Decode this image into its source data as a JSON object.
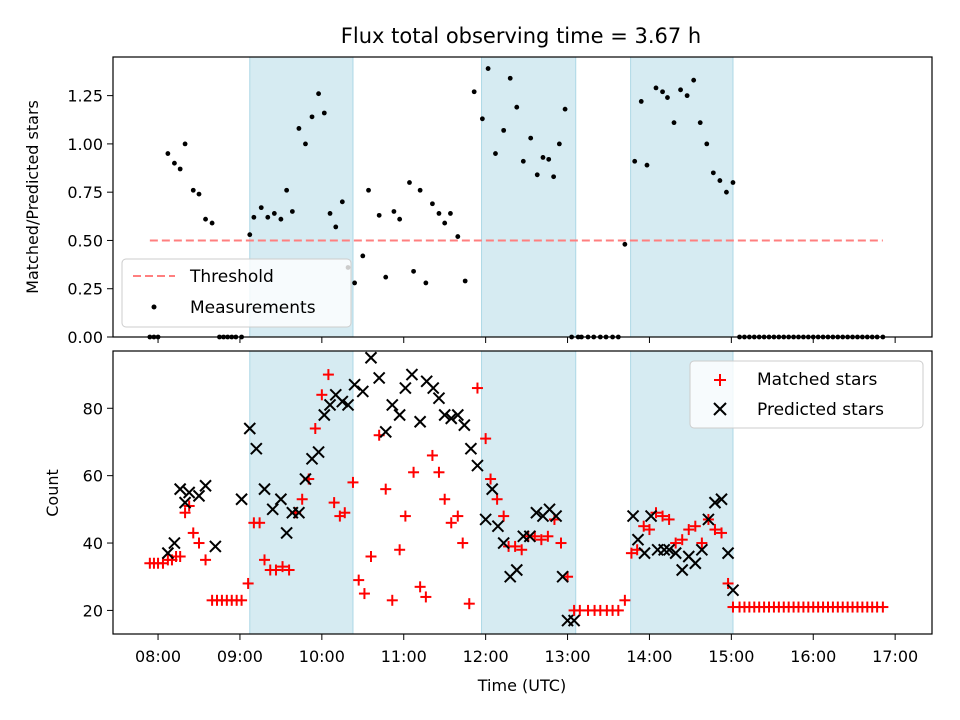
{
  "chart_data": [
    {
      "type": "scatter",
      "title": "Flux total observing time = 3.67 h",
      "xlabel": "",
      "ylabel": "Matched/Predicted stars",
      "xlim": [
        7.45,
        17.45
      ],
      "ylim": [
        0,
        1.45
      ],
      "yticks": [
        0,
        0.25,
        0.5,
        0.75,
        1.0,
        1.25
      ],
      "ytick_labels": [
        "0.00",
        "0.25",
        "0.50",
        "0.75",
        "1.00",
        "1.25"
      ],
      "threshold": {
        "label": "Threshold",
        "value": 0.5,
        "x_start": 7.9,
        "x_end": 16.85,
        "color": "#ff7f7f"
      },
      "series": [
        {
          "name": "Measurements",
          "color": "#000000",
          "x": [
            7.9,
            7.95,
            8.0,
            8.12,
            8.2,
            8.27,
            8.33,
            8.43,
            8.5,
            8.58,
            8.66,
            8.75,
            8.8,
            8.85,
            8.9,
            8.95,
            9.02,
            9.12,
            9.17,
            9.26,
            9.34,
            9.42,
            9.5,
            9.57,
            9.64,
            9.72,
            9.8,
            9.88,
            9.96,
            10.03,
            10.1,
            10.17,
            10.25,
            10.32,
            10.4,
            10.5,
            10.57,
            10.7,
            10.78,
            10.88,
            10.95,
            11.07,
            11.12,
            11.2,
            11.27,
            11.35,
            11.43,
            11.5,
            11.57,
            11.66,
            11.75,
            11.86,
            11.96,
            12.03,
            12.12,
            12.22,
            12.3,
            12.38,
            12.46,
            12.55,
            12.63,
            12.7,
            12.77,
            12.83,
            12.9,
            12.97,
            13.05,
            13.13,
            13.17,
            13.25,
            13.32,
            13.4,
            13.47,
            13.55,
            13.62,
            13.7,
            13.82,
            13.9,
            13.97,
            14.08,
            14.16,
            14.22,
            14.3,
            14.38,
            14.46,
            14.54,
            14.62,
            14.7,
            14.78,
            14.86,
            14.94,
            15.02,
            15.1,
            15.16,
            15.22,
            15.28,
            15.34,
            15.4,
            15.46,
            15.52,
            15.58,
            15.64,
            15.7,
            15.76,
            15.82,
            15.88,
            15.94,
            16.0,
            16.06,
            16.12,
            16.18,
            16.24,
            16.3,
            16.36,
            16.42,
            16.48,
            16.54,
            16.6,
            16.66,
            16.72,
            16.78,
            16.85
          ],
          "y": [
            0,
            0,
            0,
            0.95,
            0.9,
            0.87,
            1.0,
            0.76,
            0.74,
            0.61,
            0.59,
            0,
            0,
            0,
            0,
            0,
            0,
            0.53,
            0.62,
            0.67,
            0.62,
            0.64,
            0.61,
            0.76,
            0.65,
            1.08,
            1.0,
            1.14,
            1.26,
            1.16,
            0.64,
            0.57,
            0.7,
            0.36,
            0.28,
            0.42,
            0.76,
            0.63,
            0.31,
            0.65,
            0.61,
            0.8,
            0.34,
            0.76,
            0.28,
            0.69,
            0.64,
            0.59,
            0.64,
            0.52,
            0.29,
            1.27,
            1.13,
            1.39,
            0.95,
            1.07,
            1.34,
            1.19,
            0.91,
            1.03,
            0.84,
            0.93,
            0.92,
            0.83,
            1.0,
            1.18,
            0,
            0,
            0,
            0,
            0,
            0,
            0,
            0,
            0,
            0.48,
            0.91,
            1.22,
            0.89,
            1.29,
            1.27,
            1.24,
            1.11,
            1.28,
            1.25,
            1.33,
            1.11,
            1.0,
            0.85,
            0.81,
            0.75,
            0.8,
            0,
            0,
            0,
            0,
            0,
            0,
            0,
            0,
            0,
            0,
            0,
            0,
            0,
            0,
            0,
            0,
            0,
            0,
            0,
            0,
            0,
            0,
            0,
            0,
            0,
            0,
            0,
            0,
            0,
            0
          ]
        }
      ],
      "legend": [
        "Threshold",
        "Measurements"
      ],
      "legend_position": "lower-left",
      "shaded_spans": [
        [
          9.12,
          10.38
        ],
        [
          11.95,
          13.1
        ],
        [
          13.77,
          15.02
        ]
      ]
    },
    {
      "type": "scatter",
      "title": "",
      "xlabel": "Time (UTC)",
      "ylabel": "Count",
      "xlim": [
        7.45,
        17.45
      ],
      "ylim": [
        13,
        97
      ],
      "yticks": [
        20,
        40,
        60,
        80
      ],
      "ytick_labels": [
        "20",
        "40",
        "60",
        "80"
      ],
      "xticks": [
        8,
        9,
        10,
        11,
        12,
        13,
        14,
        15,
        16,
        17
      ],
      "xtick_labels": [
        "08:00",
        "09:00",
        "10:00",
        "11:00",
        "12:00",
        "13:00",
        "14:00",
        "15:00",
        "16:00",
        "17:00"
      ],
      "series": [
        {
          "name": "Matched stars",
          "marker": "plus",
          "color": "#ff0000",
          "x": [
            7.9,
            7.95,
            8.0,
            8.06,
            8.12,
            8.17,
            8.22,
            8.27,
            8.33,
            8.38,
            8.43,
            8.5,
            8.58,
            8.66,
            8.72,
            8.78,
            8.84,
            8.9,
            8.96,
            9.02,
            9.1,
            9.17,
            9.24,
            9.3,
            9.37,
            9.44,
            9.52,
            9.6,
            9.68,
            9.76,
            9.84,
            9.92,
            10.0,
            10.08,
            10.15,
            10.22,
            10.28,
            10.38,
            10.45,
            10.52,
            10.6,
            10.7,
            10.78,
            10.86,
            10.95,
            11.02,
            11.12,
            11.2,
            11.27,
            11.35,
            11.43,
            11.5,
            11.58,
            11.66,
            11.72,
            11.8,
            11.9,
            12.0,
            12.06,
            12.14,
            12.22,
            12.28,
            12.36,
            12.44,
            12.52,
            12.6,
            12.68,
            12.76,
            12.84,
            12.92,
            13.0,
            13.08,
            13.15,
            13.25,
            13.33,
            13.4,
            13.48,
            13.55,
            13.62,
            13.7,
            13.78,
            13.85,
            13.93,
            14.0,
            14.08,
            14.16,
            14.24,
            14.32,
            14.4,
            14.48,
            14.56,
            14.64,
            14.72,
            14.8,
            14.88,
            14.96,
            15.02,
            15.1,
            15.16,
            15.22,
            15.28,
            15.34,
            15.4,
            15.46,
            15.52,
            15.58,
            15.64,
            15.7,
            15.76,
            15.82,
            15.88,
            15.94,
            16.0,
            16.06,
            16.12,
            16.18,
            16.24,
            16.3,
            16.36,
            16.42,
            16.48,
            16.54,
            16.6,
            16.66,
            16.72,
            16.78,
            16.85
          ],
          "y": [
            34,
            34,
            34,
            34,
            35,
            35,
            36,
            36,
            49,
            51,
            43,
            40,
            35,
            23,
            23,
            23,
            23,
            23,
            23,
            23,
            28,
            46,
            46,
            35,
            32,
            32,
            33,
            32,
            49,
            53,
            59,
            74,
            84,
            90,
            52,
            48,
            49,
            58,
            29,
            25,
            36,
            72,
            56,
            23,
            38,
            48,
            61,
            27,
            24,
            66,
            61,
            53,
            46,
            48,
            40,
            22,
            86,
            71,
            59,
            53,
            48,
            39,
            39,
            38,
            42,
            42,
            41,
            42,
            47,
            40,
            30,
            20,
            20,
            20,
            20,
            20,
            20,
            20,
            20,
            23,
            37,
            38,
            45,
            44,
            49,
            48,
            47,
            40,
            41,
            44,
            45,
            40,
            47,
            44,
            43,
            28,
            21,
            21,
            21,
            21,
            21,
            21,
            21,
            21,
            21,
            21,
            21,
            21,
            21,
            21,
            21,
            21,
            21,
            21,
            21,
            21,
            21,
            21,
            21,
            21,
            21,
            21,
            21,
            21,
            21,
            21,
            21
          ]
        },
        {
          "name": "Predicted stars",
          "marker": "x",
          "color": "#000000",
          "x": [
            8.12,
            8.2,
            8.27,
            8.33,
            8.38,
            8.5,
            8.58,
            8.7,
            9.02,
            9.12,
            9.2,
            9.3,
            9.4,
            9.5,
            9.57,
            9.64,
            9.72,
            9.8,
            9.88,
            9.96,
            10.03,
            10.1,
            10.17,
            10.25,
            10.32,
            10.4,
            10.5,
            10.6,
            10.7,
            10.78,
            10.86,
            10.95,
            11.02,
            11.1,
            11.2,
            11.28,
            11.36,
            11.43,
            11.5,
            11.58,
            11.66,
            11.74,
            11.82,
            11.9,
            12.0,
            12.08,
            12.15,
            12.22,
            12.3,
            12.38,
            12.46,
            12.54,
            12.62,
            12.7,
            12.78,
            12.86,
            12.94,
            13.0,
            13.08,
            13.8,
            13.86,
            13.94,
            14.02,
            14.1,
            14.18,
            14.24,
            14.32,
            14.4,
            14.48,
            14.56,
            14.64,
            14.72,
            14.8,
            14.88,
            14.96,
            15.02
          ],
          "y": [
            37,
            40,
            56,
            52,
            55,
            54,
            57,
            39,
            53,
            74,
            68,
            56,
            50,
            53,
            43,
            49,
            49,
            59,
            65,
            67,
            78,
            81,
            84,
            82,
            81,
            87,
            85,
            95,
            89,
            73,
            81,
            78,
            86,
            90,
            76,
            88,
            86,
            83,
            78,
            77,
            78,
            75,
            68,
            63,
            47,
            56,
            45,
            40,
            30,
            32,
            42,
            42,
            49,
            48,
            50,
            48,
            30,
            17,
            17,
            48,
            41,
            37,
            48,
            38,
            38,
            38,
            37,
            32,
            36,
            34,
            38,
            47,
            52,
            53,
            37,
            26
          ]
        }
      ],
      "legend": [
        "Matched stars",
        "Predicted stars"
      ],
      "legend_position": "top-right",
      "shaded_spans": [
        [
          9.12,
          10.38
        ],
        [
          11.95,
          13.1
        ],
        [
          13.77,
          15.02
        ]
      ]
    }
  ]
}
